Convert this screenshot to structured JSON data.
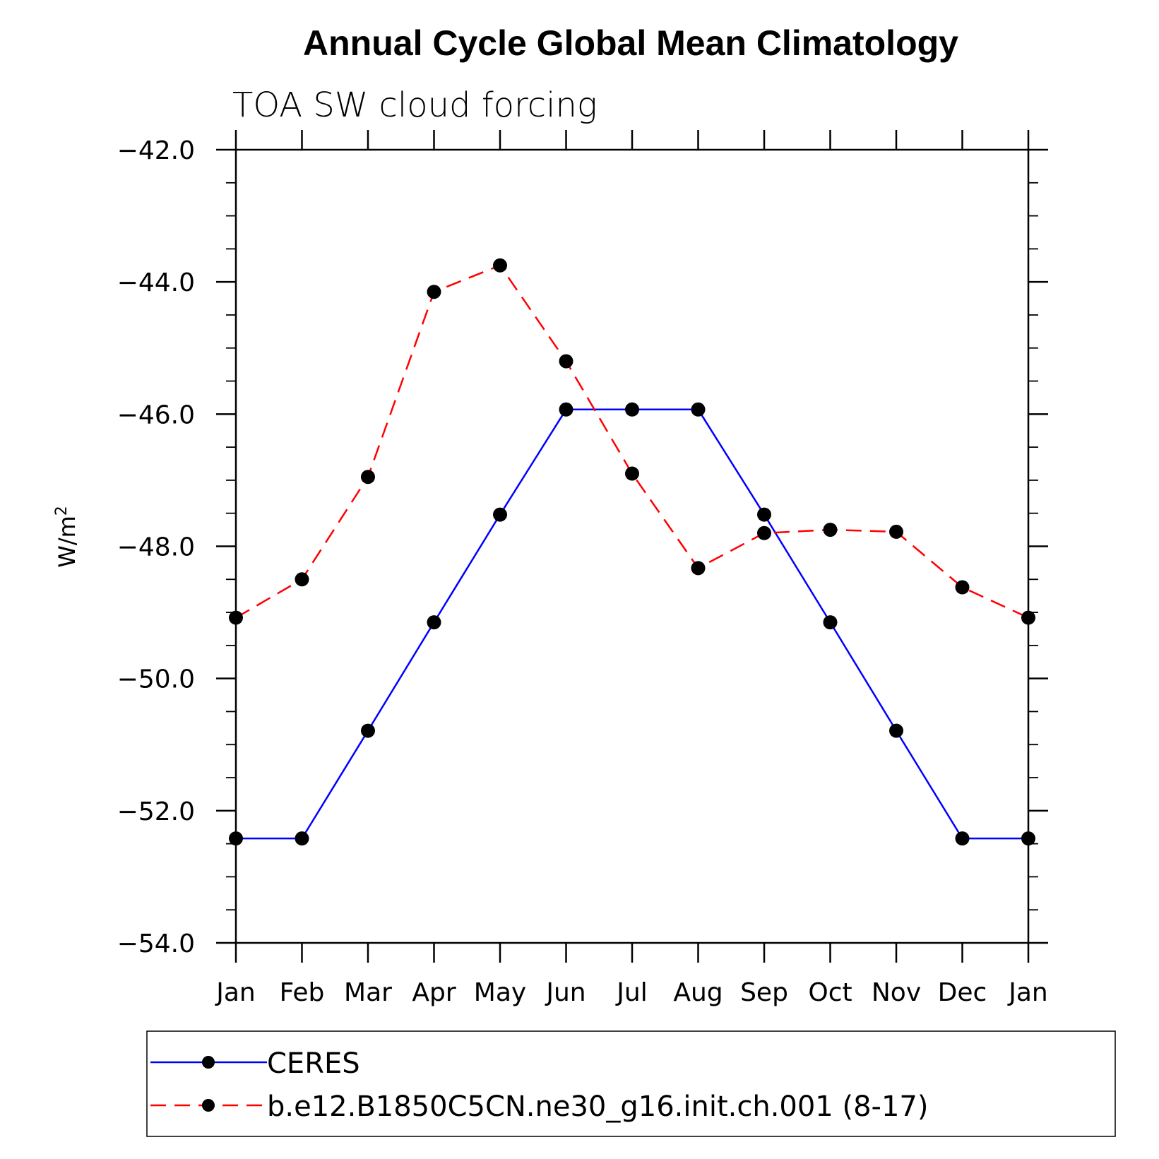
{
  "chart_data": {
    "type": "line",
    "title": "Annual Cycle Global Mean Climatology",
    "subtitle": "TOA SW cloud forcing",
    "ylabel": "W/m",
    "ylabel_superscript": "2",
    "ylim": [
      -54.0,
      -42.0
    ],
    "yticks": [
      "-42.0",
      "-44.0",
      "-46.0",
      "-48.0",
      "-50.0",
      "-52.0",
      "-54.0"
    ],
    "ytick_values": [
      -42,
      -44,
      -46,
      -48,
      -50,
      -52,
      -54
    ],
    "categories": [
      "Jan",
      "Feb",
      "Mar",
      "Apr",
      "May",
      "Jun",
      "Jul",
      "Aug",
      "Sep",
      "Oct",
      "Nov",
      "Dec",
      "Jan"
    ],
    "grid": false,
    "legend_position": "bottom",
    "series": [
      {
        "name": "CERES",
        "color": "#0000ff",
        "dash": "solid",
        "values": [
          -52.42,
          -52.42,
          -50.79,
          -49.15,
          -47.52,
          -45.93,
          -45.93,
          -45.93,
          -47.52,
          -49.15,
          -50.79,
          -52.42,
          -52.42
        ]
      },
      {
        "name": "b.e12.B1850C5CN.ne30_g16.init.ch.001 (8-17)",
        "color": "#ff0000",
        "dash": "dashed",
        "values": [
          -49.08,
          -48.5,
          -46.95,
          -44.15,
          -43.75,
          -45.2,
          -46.9,
          -48.33,
          -47.8,
          -47.75,
          -47.78,
          -48.62,
          -49.08
        ]
      }
    ]
  }
}
